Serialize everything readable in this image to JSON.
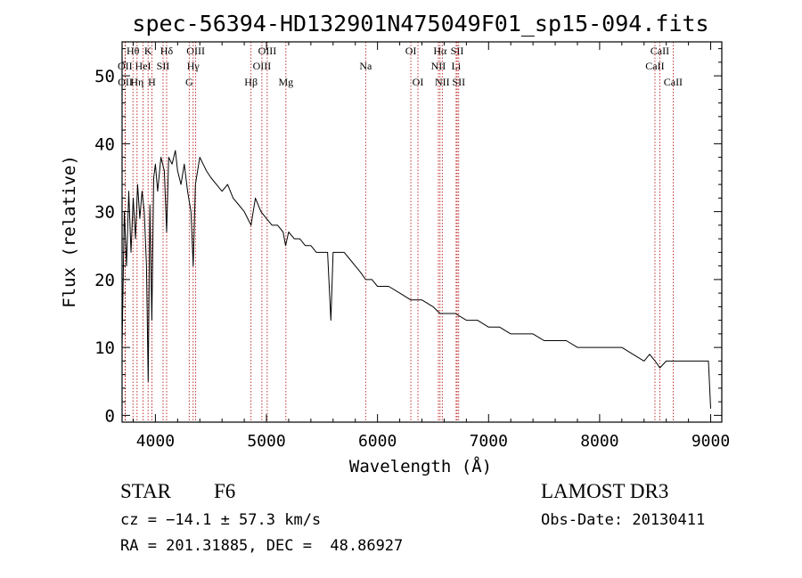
{
  "chart_data": {
    "type": "line",
    "title": "spec-56394-HD132901N475049F01_sp15-094.fits",
    "xlabel": "Wavelength (Å)",
    "ylabel": "Flux (relative)",
    "xlim": [
      3700,
      9100
    ],
    "ylim": [
      -1,
      55
    ],
    "xticks": [
      4000,
      5000,
      6000,
      7000,
      8000,
      9000
    ],
    "xtick_labels": [
      "4000",
      "5000",
      "6000",
      "7000",
      "8000",
      "9000"
    ],
    "yticks": [
      0,
      10,
      20,
      30,
      40,
      50
    ],
    "ytick_labels": [
      "0",
      "10",
      "20",
      "30",
      "40",
      "50"
    ],
    "grid": false,
    "line_color": "#000000",
    "marker_color": "#b00000",
    "series": [
      {
        "name": "spectrum",
        "x": [
          3700,
          3720,
          3740,
          3760,
          3780,
          3800,
          3820,
          3840,
          3860,
          3880,
          3900,
          3920,
          3935,
          3950,
          3968,
          3985,
          4000,
          4020,
          4050,
          4080,
          4101,
          4120,
          4150,
          4180,
          4200,
          4230,
          4260,
          4290,
          4320,
          4340,
          4360,
          4380,
          4400,
          4430,
          4460,
          4500,
          4550,
          4600,
          4650,
          4700,
          4750,
          4800,
          4861,
          4900,
          4950,
          5000,
          5050,
          5100,
          5150,
          5172,
          5200,
          5250,
          5300,
          5350,
          5400,
          5450,
          5500,
          5550,
          5580,
          5600,
          5650,
          5700,
          5750,
          5800,
          5850,
          5893,
          5950,
          6000,
          6100,
          6200,
          6300,
          6400,
          6500,
          6563,
          6600,
          6700,
          6800,
          6900,
          7000,
          7100,
          7200,
          7300,
          7400,
          7500,
          7600,
          7700,
          7800,
          7900,
          8000,
          8100,
          8200,
          8300,
          8400,
          8450,
          8500,
          8542,
          8600,
          8662,
          8700,
          8800,
          8900,
          8980,
          9000
        ],
        "y": [
          10,
          30,
          22,
          33,
          24,
          32,
          26,
          34,
          29,
          33,
          30,
          22,
          5,
          31,
          14,
          35,
          37,
          33,
          38,
          36,
          27,
          38,
          37,
          39,
          36,
          34,
          37,
          33,
          30,
          22,
          34,
          36,
          38,
          37,
          36,
          35,
          34,
          33,
          34,
          32,
          31,
          30,
          28,
          32,
          30,
          29,
          28,
          28,
          27,
          25,
          27,
          26,
          26,
          25,
          25,
          24,
          24,
          24,
          14,
          24,
          24,
          24,
          23,
          22,
          21,
          20,
          20,
          19,
          19,
          18,
          17,
          17,
          16,
          15,
          15,
          15,
          14,
          14,
          13,
          13,
          12,
          12,
          12,
          11,
          11,
          11,
          10,
          10,
          10,
          10,
          10,
          9,
          8,
          9,
          8,
          7,
          8,
          8,
          8,
          8,
          8,
          8,
          1
        ]
      }
    ],
    "markers": [
      {
        "label": "Hθ",
        "wl": 3798,
        "row": 1
      },
      {
        "label": "OII",
        "wl": 3727,
        "row": 2
      },
      {
        "label": "OII",
        "wl": 3729,
        "row": 3
      },
      {
        "label": "HeI",
        "wl": 3889,
        "row": 2
      },
      {
        "label": "Hη",
        "wl": 3835,
        "row": 3
      },
      {
        "label": "K",
        "wl": 3934,
        "row": 1
      },
      {
        "label": "H",
        "wl": 3968,
        "row": 3
      },
      {
        "label": "SII",
        "wl": 4069,
        "row": 2
      },
      {
        "label": "Hδ",
        "wl": 4101,
        "row": 1
      },
      {
        "label": "OIII",
        "wl": 4363,
        "row": 1
      },
      {
        "label": "Hγ",
        "wl": 4340,
        "row": 2
      },
      {
        "label": "G",
        "wl": 4304,
        "row": 3
      },
      {
        "label": "Hβ",
        "wl": 4861,
        "row": 3
      },
      {
        "label": "OIII",
        "wl": 4959,
        "row": 2
      },
      {
        "label": "OIII",
        "wl": 5007,
        "row": 1
      },
      {
        "label": "Mg",
        "wl": 5175,
        "row": 3
      },
      {
        "label": "Na",
        "wl": 5893,
        "row": 2
      },
      {
        "label": "OI",
        "wl": 6300,
        "row": 1
      },
      {
        "label": "OI",
        "wl": 6364,
        "row": 3
      },
      {
        "label": "Hα",
        "wl": 6563,
        "row": 1
      },
      {
        "label": "NII",
        "wl": 6548,
        "row": 2
      },
      {
        "label": "NII",
        "wl": 6583,
        "row": 3
      },
      {
        "label": "SII",
        "wl": 6717,
        "row": 1
      },
      {
        "label": "Li",
        "wl": 6708,
        "row": 2
      },
      {
        "label": "SII",
        "wl": 6731,
        "row": 3
      },
      {
        "label": "CaII",
        "wl": 8498,
        "row": 2
      },
      {
        "label": "CaII",
        "wl": 8542,
        "row": 1
      },
      {
        "label": "CaII",
        "wl": 8662,
        "row": 3
      }
    ]
  },
  "info": {
    "object_class": "STAR",
    "subclass": "F6",
    "survey": "LAMOST DR3",
    "cz": "cz = −14.1 ± 57.3 km/s",
    "obs_date": "Obs-Date: 20130411",
    "coords": "RA = 201.31885, DEC =  48.86927"
  }
}
